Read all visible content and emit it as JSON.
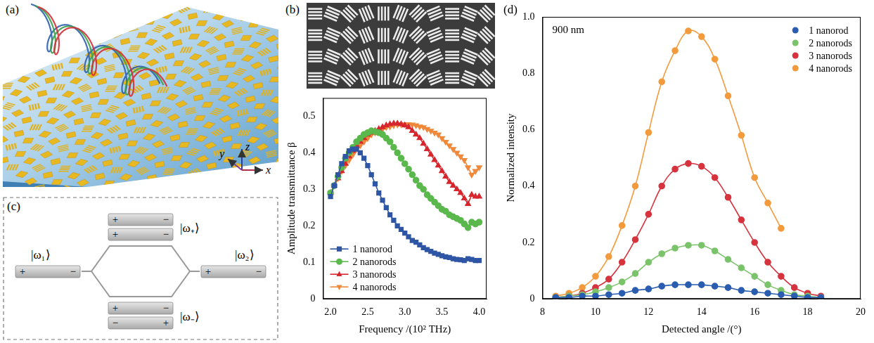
{
  "panels": {
    "a": {
      "label": "(a)",
      "axes": {
        "x": "x",
        "y": "y",
        "z": "z"
      }
    },
    "b": {
      "label": "(b)"
    },
    "c": {
      "label": "(c)",
      "left": {
        "label": "|ω₁⟩",
        "charges": [
          [
            "+",
            "−"
          ]
        ]
      },
      "right": {
        "label": "|ω₂⟩",
        "charges": [
          [
            "+",
            "−"
          ]
        ]
      },
      "upper": {
        "label": "|ω₊⟩",
        "charges": [
          [
            "+",
            "−"
          ],
          [
            "+",
            "−"
          ]
        ]
      },
      "lower": {
        "label": "|ω₋⟩",
        "charges": [
          [
            "+",
            "−"
          ],
          [
            "−",
            "+"
          ]
        ]
      }
    },
    "d": {
      "label": "(d)"
    }
  },
  "chart_data": [
    {
      "type": "line",
      "x_label": "Frequency /(10² THz)",
      "y_label": "Amplitude transmittance β",
      "x": [
        2,
        2.05,
        2.1,
        2.15,
        2.2,
        2.25,
        2.3,
        2.35,
        2.4,
        2.45,
        2.5,
        2.55,
        2.6,
        2.65,
        2.7,
        2.75,
        2.8,
        2.85,
        2.9,
        2.95,
        3,
        3.05,
        3.1,
        3.15,
        3.2,
        3.25,
        3.3,
        3.35,
        3.4,
        3.45,
        3.5,
        3.55,
        3.6,
        3.65,
        3.7,
        3.75,
        3.8,
        3.85,
        3.9,
        3.95,
        4
      ],
      "series": [
        {
          "name": "1 nanorod",
          "color": "#2f56a4",
          "marker": "square",
          "line_style": "solid",
          "values": [
            0.28,
            0.31,
            0.34,
            0.37,
            0.39,
            0.405,
            0.41,
            0.41,
            0.4,
            0.385,
            0.365,
            0.34,
            0.315,
            0.29,
            0.27,
            0.25,
            0.23,
            0.215,
            0.2,
            0.19,
            0.18,
            0.17,
            0.16,
            0.155,
            0.148,
            0.14,
            0.135,
            0.13,
            0.125,
            0.122,
            0.118,
            0.115,
            0.113,
            0.11,
            0.108,
            0.107,
            0.105,
            0.11,
            0.108,
            0.105,
            0.105
          ]
        },
        {
          "name": "2 nanorods",
          "color": "#5ab84c",
          "marker": "circle",
          "line_style": "solid",
          "values": [
            0.29,
            0.31,
            0.335,
            0.36,
            0.385,
            0.4,
            0.415,
            0.43,
            0.44,
            0.45,
            0.455,
            0.46,
            0.458,
            0.455,
            0.45,
            0.44,
            0.43,
            0.415,
            0.4,
            0.385,
            0.37,
            0.355,
            0.34,
            0.325,
            0.31,
            0.3,
            0.285,
            0.275,
            0.265,
            0.255,
            0.245,
            0.24,
            0.23,
            0.225,
            0.22,
            0.215,
            0.205,
            0.195,
            0.21,
            0.205,
            0.21
          ]
        },
        {
          "name": "3 nanorods",
          "color": "#d7262e",
          "marker": "triangle",
          "line_style": "solid",
          "values": [
            0.29,
            0.31,
            0.33,
            0.35,
            0.37,
            0.39,
            0.405,
            0.42,
            0.43,
            0.44,
            0.45,
            0.455,
            0.46,
            0.465,
            0.47,
            0.475,
            0.478,
            0.48,
            0.48,
            0.478,
            0.475,
            0.47,
            0.46,
            0.45,
            0.44,
            0.425,
            0.41,
            0.395,
            0.38,
            0.365,
            0.35,
            0.335,
            0.32,
            0.31,
            0.3,
            0.29,
            0.275,
            0.26,
            0.285,
            0.28,
            0.28
          ]
        },
        {
          "name": "4 nanorods",
          "color": "#f0883a",
          "marker": "triangle_down",
          "line_style": "solid",
          "values": [
            0.29,
            0.31,
            0.33,
            0.35,
            0.365,
            0.38,
            0.395,
            0.41,
            0.42,
            0.43,
            0.44,
            0.45,
            0.455,
            0.46,
            0.465,
            0.47,
            0.472,
            0.475,
            0.477,
            0.478,
            0.478,
            0.478,
            0.477,
            0.475,
            0.472,
            0.47,
            0.465,
            0.46,
            0.455,
            0.45,
            0.44,
            0.43,
            0.42,
            0.41,
            0.4,
            0.39,
            0.38,
            0.36,
            0.34,
            0.35,
            0.36
          ]
        }
      ],
      "xlim": [
        1.9,
        4.1
      ],
      "xticks": [
        {
          "value": 2,
          "label": "2.0"
        },
        2.5,
        {
          "value": 3,
          "label": "3.0"
        },
        3.5,
        {
          "value": 4,
          "label": "4.0"
        }
      ],
      "ylim": [
        0,
        0.55
      ],
      "yticks": [
        0,
        0.1,
        0.2,
        0.3,
        0.4,
        0.5
      ],
      "grid": false,
      "legend": "lower left"
    },
    {
      "type": "line",
      "annotation": "900 nm",
      "x_label": "Detected angle /(°)",
      "y_label": "Normalized intensity",
      "x": [
        8.5,
        9,
        9.5,
        10,
        10.5,
        11,
        11.5,
        12,
        12.5,
        13,
        13.5,
        14,
        14.5,
        15,
        15.5,
        16,
        16.5,
        17,
        17.5,
        18,
        18.5
      ],
      "series": [
        {
          "name": "1 nanorod",
          "color": "#2a5db0",
          "marker": "circle",
          "line_style": "smooth",
          "values": [
            0.005,
            0.005,
            0.01,
            0.01,
            0.015,
            0.02,
            0.03,
            0.035,
            0.045,
            0.05,
            0.05,
            0.05,
            0.045,
            0.04,
            0.03,
            0.025,
            0.02,
            0.015,
            0.01,
            0.005,
            0.005
          ]
        },
        {
          "name": "2 nanorods",
          "color": "#7ac36a",
          "marker": "circle",
          "line_style": "smooth",
          "values": [
            0.005,
            0.01,
            0.015,
            0.025,
            0.04,
            0.06,
            0.09,
            0.13,
            0.16,
            0.18,
            0.19,
            0.19,
            0.17,
            0.14,
            0.11,
            0.08,
            0.05,
            0.03,
            0.015,
            0.01,
            0.005
          ]
        },
        {
          "name": "3 nanorods",
          "color": "#d6333f",
          "marker": "circle",
          "line_style": "smooth",
          "values": [
            0.005,
            0.01,
            0.02,
            0.04,
            0.07,
            0.13,
            0.21,
            0.3,
            0.4,
            0.46,
            0.48,
            0.47,
            0.43,
            0.36,
            0.28,
            0.2,
            0.13,
            0.08,
            0.04,
            0.02,
            0.01
          ]
        },
        {
          "name": "4 nanorods",
          "color": "#f39a3c",
          "marker": "circle",
          "line_style": "smooth",
          "values": [
            0.01,
            0.02,
            0.04,
            0.08,
            0.15,
            0.26,
            0.4,
            0.59,
            0.77,
            0.88,
            0.95,
            0.93,
            0.85,
            0.72,
            0.58,
            0.43,
            0.34,
            0.25,
            null,
            null,
            null
          ]
        }
      ],
      "xlim": [
        8,
        20
      ],
      "xticks": [
        8,
        10,
        12,
        14,
        16,
        18,
        20
      ],
      "ylim": [
        0,
        1
      ],
      "yticks": [
        0,
        0.2,
        0.4,
        0.6,
        0.8,
        {
          "value": 1,
          "label": "1.0"
        }
      ],
      "grid": false,
      "legend": "upper right"
    }
  ]
}
